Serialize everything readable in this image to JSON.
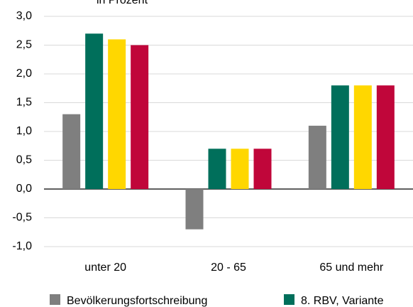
{
  "chart_data": {
    "type": "bar",
    "title": "in Prozent",
    "categories": [
      "unter 20",
      "20 - 65",
      "65 und mehr"
    ],
    "series": [
      {
        "name": "Bevölkerungsfortschreibung",
        "color": "#7f7f7f",
        "values": [
          1.3,
          -0.7,
          1.1
        ]
      },
      {
        "name": "8. RBV, Variante",
        "color": "#006f5b",
        "values": [
          2.7,
          0.7,
          1.8
        ]
      },
      {
        "color": "#ffd700",
        "values": [
          2.6,
          0.7,
          1.8
        ]
      },
      {
        "color": "#c0063a",
        "values": [
          2.5,
          0.7,
          1.8
        ]
      }
    ],
    "ylim": [
      -1,
      3
    ],
    "yticks": [
      {
        "value": -1,
        "label": "-1,0"
      },
      {
        "value": -0.5,
        "label": "-0,5"
      },
      {
        "value": 0,
        "label": "0,0"
      },
      {
        "value": 0.5,
        "label": "0,5"
      },
      {
        "value": 1,
        "label": "1,0"
      },
      {
        "value": 1.5,
        "label": "1,5"
      },
      {
        "value": 2,
        "label": "2,0"
      },
      {
        "value": 2.5,
        "label": "2,5"
      },
      {
        "value": 3,
        "label": "3,0"
      }
    ],
    "grid": true
  }
}
